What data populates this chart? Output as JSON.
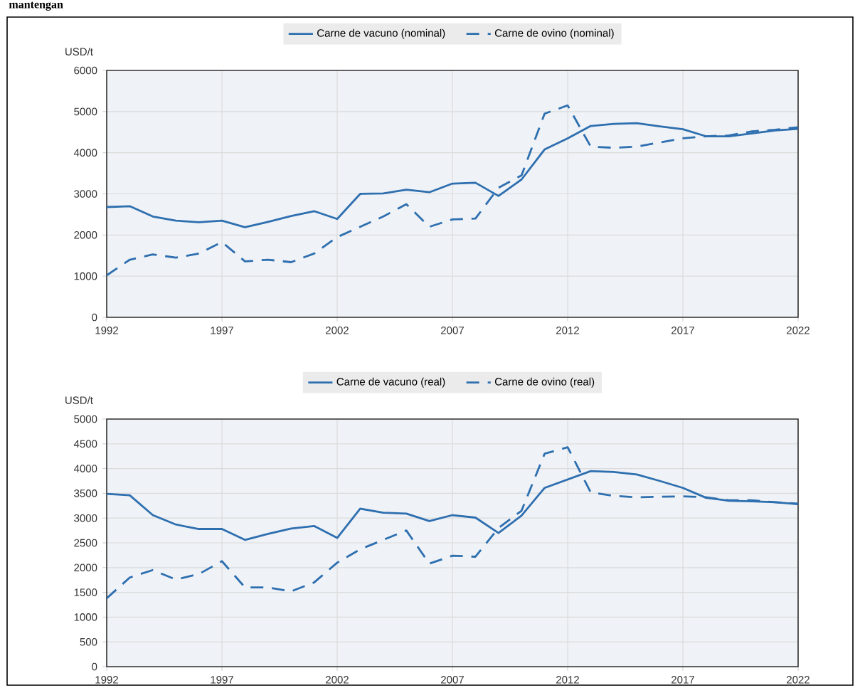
{
  "chart_data": [
    {
      "type": "line",
      "ylabel": "USD/t",
      "annotations": [
        "mantengan"
      ],
      "x": [
        1992,
        1993,
        1994,
        1995,
        1996,
        1997,
        1998,
        1999,
        2000,
        2001,
        2002,
        2003,
        2004,
        2005,
        2006,
        2007,
        2008,
        2009,
        2010,
        2011,
        2012,
        2013,
        2014,
        2015,
        2016,
        2017,
        2018,
        2019,
        2020,
        2021,
        2022
      ],
      "series": [
        {
          "name": "Carne de vacuno (nominal)",
          "color": "#2e6fb0",
          "line_style": "solid",
          "values": [
            2680,
            2700,
            2450,
            2350,
            2310,
            2350,
            2190,
            2320,
            2460,
            2580,
            2390,
            3000,
            3010,
            3100,
            3040,
            3250,
            3270,
            2950,
            3350,
            4080,
            4350,
            4650,
            4700,
            4720,
            4640,
            4570,
            4400,
            4400,
            4470,
            4540,
            4580
          ]
        },
        {
          "name": "Carne de ovino (nominal)",
          "color": "#2e6fb0",
          "line_style": "dashed",
          "values": [
            1020,
            1400,
            1530,
            1450,
            1550,
            1830,
            1360,
            1400,
            1340,
            1550,
            1950,
            2200,
            2450,
            2750,
            2200,
            2380,
            2400,
            3150,
            3450,
            4950,
            5150,
            4150,
            4120,
            4150,
            4250,
            4350,
            4400,
            4420,
            4520,
            4560,
            4620
          ]
        }
      ],
      "xlim": [
        1992,
        2022
      ],
      "xticks": [
        1992,
        1997,
        2002,
        2007,
        2012,
        2017,
        2022
      ],
      "ylim": [
        0,
        6000
      ],
      "yticks": [
        0,
        1000,
        2000,
        3000,
        4000,
        5000,
        6000
      ],
      "grid": true,
      "legend": "top"
    },
    {
      "type": "line",
      "ylabel": "USD/t",
      "x": [
        1992,
        1993,
        1994,
        1995,
        1996,
        1997,
        1998,
        1999,
        2000,
        2001,
        2002,
        2003,
        2004,
        2005,
        2006,
        2007,
        2008,
        2009,
        2010,
        2011,
        2012,
        2013,
        2014,
        2015,
        2016,
        2017,
        2018,
        2019,
        2020,
        2021,
        2022
      ],
      "series": [
        {
          "name": "Carne de vacuno (real)",
          "color": "#2e6fb0",
          "line_style": "solid",
          "values": [
            3490,
            3460,
            3060,
            2870,
            2780,
            2780,
            2560,
            2680,
            2790,
            2840,
            2600,
            3190,
            3110,
            3090,
            2940,
            3060,
            3010,
            2700,
            3050,
            3610,
            3780,
            3950,
            3930,
            3880,
            3750,
            3610,
            3410,
            3350,
            3340,
            3320,
            3280
          ]
        },
        {
          "name": "Carne de ovino (real)",
          "color": "#2e6fb0",
          "line_style": "dashed",
          "values": [
            1380,
            1800,
            1950,
            1760,
            1870,
            2130,
            1600,
            1600,
            1520,
            1700,
            2100,
            2370,
            2560,
            2750,
            2080,
            2240,
            2220,
            2800,
            3150,
            4300,
            4430,
            3520,
            3450,
            3420,
            3430,
            3440,
            3420,
            3360,
            3360,
            3320,
            3290
          ]
        }
      ],
      "xlim": [
        1992,
        2022
      ],
      "xticks": [
        1992,
        1997,
        2002,
        2007,
        2012,
        2017,
        2022
      ],
      "ylim": [
        0,
        5000
      ],
      "yticks": [
        0,
        500,
        1000,
        1500,
        2000,
        2500,
        3000,
        3500,
        4000,
        4500,
        5000
      ],
      "grid": true,
      "legend": "top"
    }
  ]
}
